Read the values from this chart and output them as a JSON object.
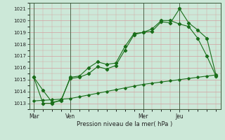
{
  "bg_color": "#cce8d8",
  "grid_color": "#d4a0a0",
  "line_color": "#1a6e1a",
  "title": "Pression niveau de la mer( hPa )",
  "ylim": [
    1012.5,
    1021.5
  ],
  "yticks": [
    1013,
    1014,
    1015,
    1016,
    1017,
    1018,
    1019,
    1020,
    1021
  ],
  "xlim": [
    -0.5,
    20.5
  ],
  "day_ticks": [
    0,
    4,
    12,
    16
  ],
  "day_labels": [
    "Mar",
    "Ven",
    "Mer",
    "Jeu"
  ],
  "vlines": [
    0,
    4,
    12,
    16
  ],
  "line1_x": [
    0,
    1,
    2,
    3,
    4,
    5,
    6,
    7,
    8,
    9,
    10,
    11,
    12,
    13,
    14,
    15,
    16,
    17,
    18,
    19,
    20
  ],
  "line1_y": [
    1015.2,
    1014.1,
    1013.1,
    1013.2,
    1015.2,
    1015.3,
    1016.0,
    1016.5,
    1016.3,
    1016.4,
    1017.8,
    1018.9,
    1019.0,
    1019.3,
    1020.0,
    1020.0,
    1019.7,
    1019.5,
    1018.5,
    1017.0,
    1015.3
  ],
  "line2_x": [
    0,
    1,
    2,
    3,
    4,
    5,
    6,
    7,
    8,
    9,
    10,
    11,
    12,
    13,
    14,
    15,
    16,
    17,
    18,
    19,
    20
  ],
  "line2_y": [
    1015.2,
    1013.0,
    1013.0,
    1013.3,
    1015.1,
    1015.2,
    1015.5,
    1016.1,
    1015.9,
    1016.2,
    1017.5,
    1018.8,
    1019.0,
    1019.1,
    1019.9,
    1019.8,
    1021.0,
    1019.8,
    1019.2,
    1018.5,
    1015.4
  ],
  "line3_x": [
    0,
    1,
    2,
    3,
    4,
    5,
    6,
    7,
    8,
    9,
    10,
    11,
    12,
    13,
    14,
    15,
    16,
    17,
    18,
    19,
    20
  ],
  "line3_y": [
    1013.2,
    1013.25,
    1013.3,
    1013.35,
    1013.4,
    1013.55,
    1013.7,
    1013.85,
    1014.0,
    1014.15,
    1014.3,
    1014.45,
    1014.6,
    1014.7,
    1014.8,
    1014.9,
    1015.0,
    1015.1,
    1015.2,
    1015.3,
    1015.4
  ]
}
